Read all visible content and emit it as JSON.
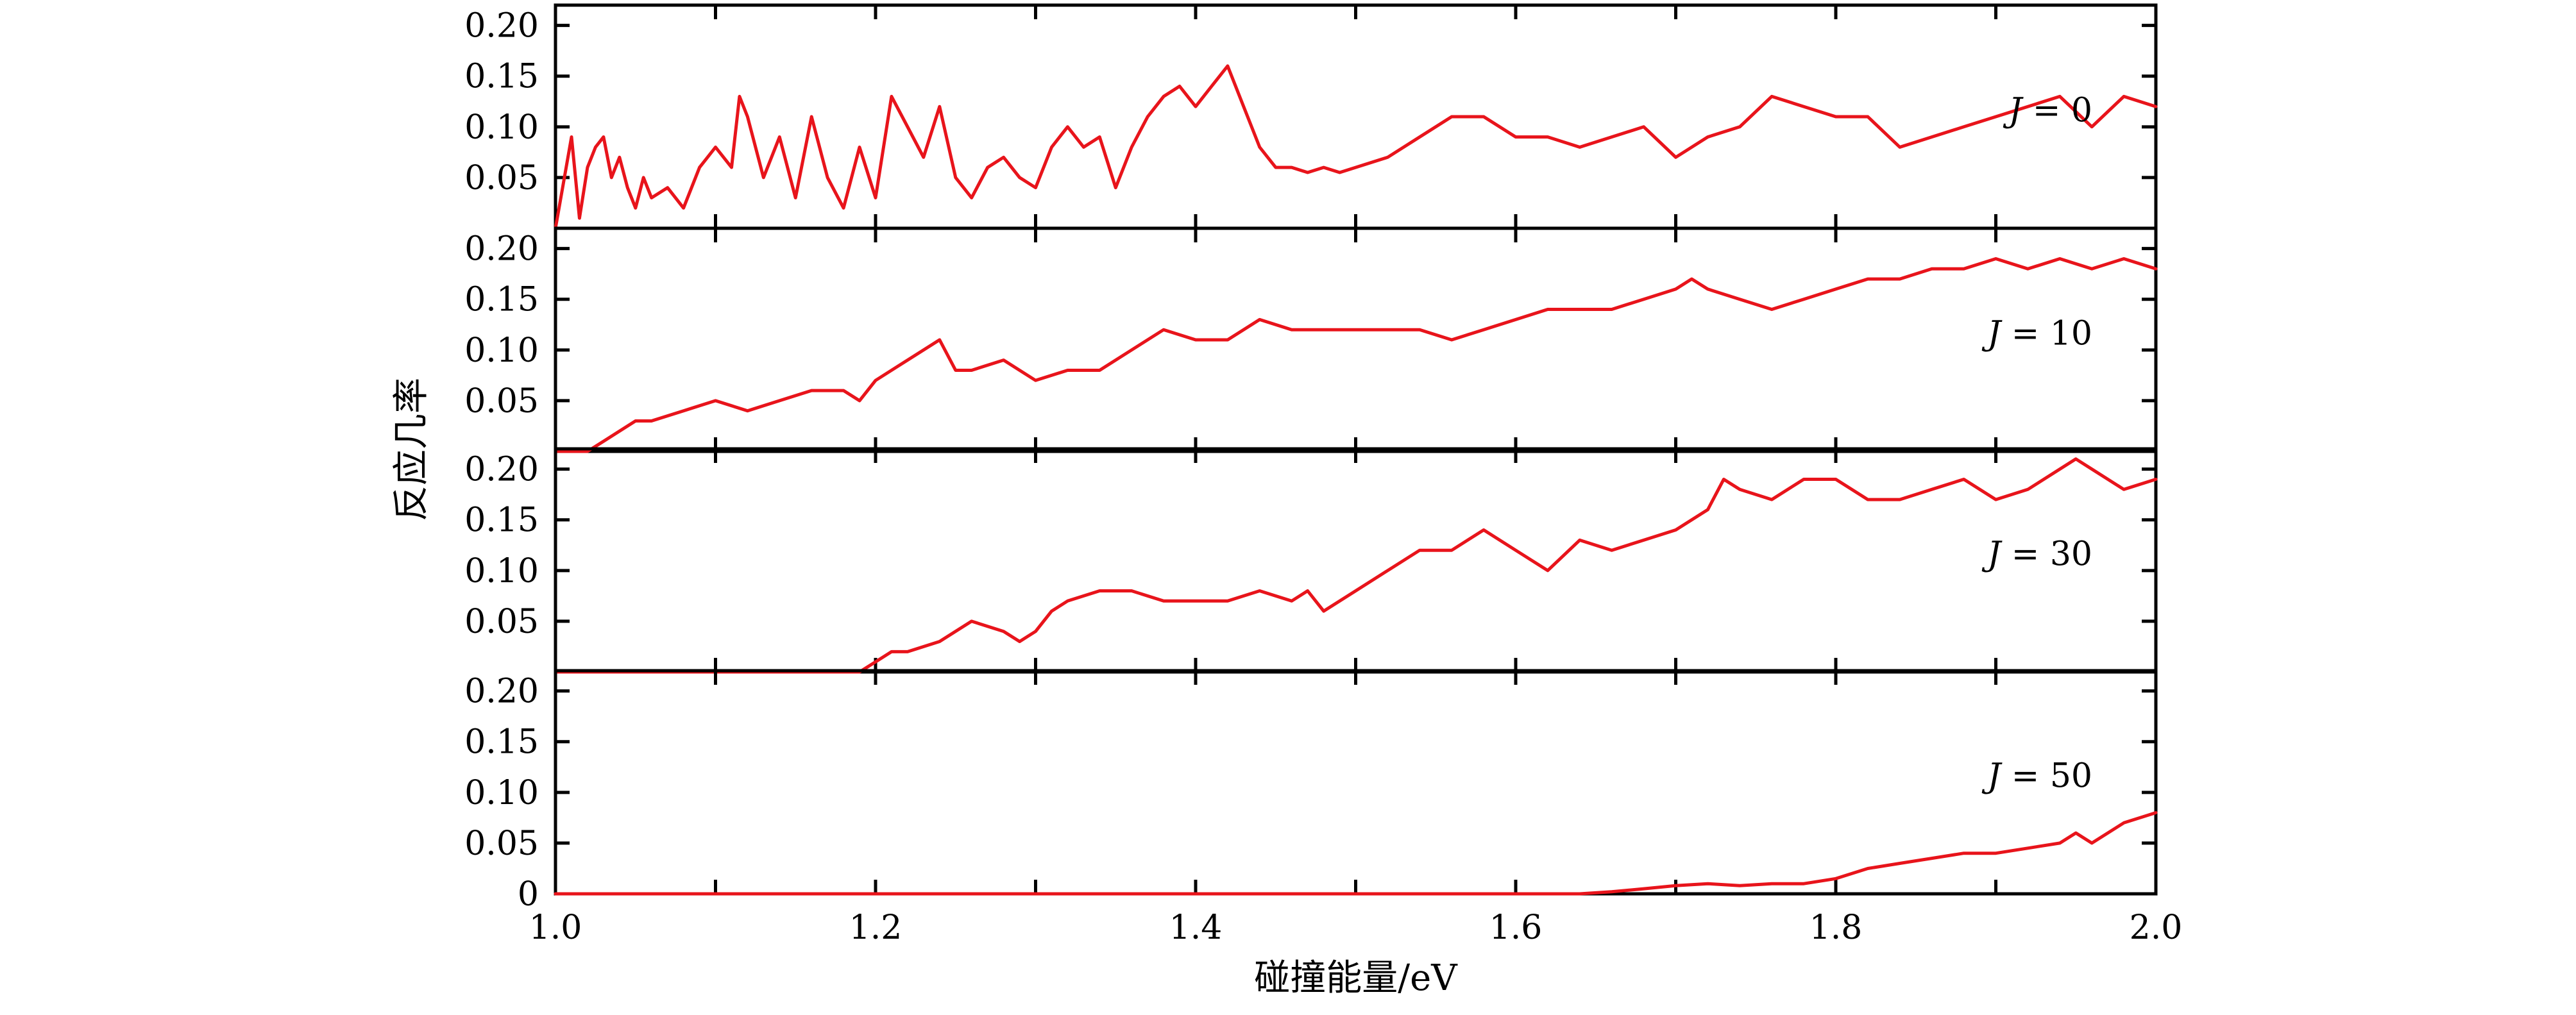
{
  "chart_data": {
    "type": "line",
    "layout": "stacked-panels",
    "xlabel": "碰撞能量/eV",
    "ylabel": "反应几率",
    "xlim": [
      1.0,
      2.0
    ],
    "ylim": [
      0.0,
      0.22
    ],
    "x_ticks": [
      1.0,
      1.1,
      1.2,
      1.3,
      1.4,
      1.5,
      1.6,
      1.7,
      1.8,
      1.9,
      2.0
    ],
    "x_tick_labels": [
      "1.0",
      "1.2",
      "1.4",
      "1.6",
      "1.8",
      "2.0"
    ],
    "y_ticks": [
      0.05,
      0.1,
      0.15,
      0.2
    ],
    "y_tick_labels": [
      "0.05",
      "0.10",
      "0.15",
      "0.20"
    ],
    "bottom_zero_label": "0",
    "line_color": "#e8141b",
    "grid": false,
    "panels": [
      {
        "label": "J = 0",
        "J": "J",
        "eq": "= 0",
        "series": {
          "x": [
            1.0,
            1.01,
            1.015,
            1.02,
            1.025,
            1.03,
            1.035,
            1.04,
            1.045,
            1.05,
            1.055,
            1.06,
            1.07,
            1.08,
            1.09,
            1.1,
            1.11,
            1.115,
            1.12,
            1.13,
            1.14,
            1.15,
            1.16,
            1.17,
            1.18,
            1.19,
            1.2,
            1.21,
            1.22,
            1.23,
            1.24,
            1.25,
            1.26,
            1.27,
            1.28,
            1.29,
            1.3,
            1.31,
            1.32,
            1.33,
            1.34,
            1.35,
            1.36,
            1.37,
            1.38,
            1.39,
            1.4,
            1.41,
            1.42,
            1.43,
            1.44,
            1.45,
            1.46,
            1.47,
            1.48,
            1.49,
            1.5,
            1.52,
            1.54,
            1.56,
            1.58,
            1.6,
            1.62,
            1.64,
            1.66,
            1.68,
            1.7,
            1.72,
            1.74,
            1.76,
            1.78,
            1.8,
            1.82,
            1.84,
            1.86,
            1.88,
            1.9,
            1.92,
            1.94,
            1.96,
            1.98,
            2.0
          ],
          "y": [
            0.0,
            0.09,
            0.01,
            0.06,
            0.08,
            0.09,
            0.05,
            0.07,
            0.04,
            0.02,
            0.05,
            0.03,
            0.04,
            0.02,
            0.06,
            0.08,
            0.06,
            0.13,
            0.11,
            0.05,
            0.09,
            0.03,
            0.11,
            0.05,
            0.02,
            0.08,
            0.03,
            0.13,
            0.1,
            0.07,
            0.12,
            0.05,
            0.03,
            0.06,
            0.07,
            0.05,
            0.04,
            0.08,
            0.1,
            0.08,
            0.09,
            0.04,
            0.08,
            0.11,
            0.13,
            0.14,
            0.12,
            0.14,
            0.16,
            0.12,
            0.08,
            0.06,
            0.06,
            0.055,
            0.06,
            0.055,
            0.06,
            0.07,
            0.09,
            0.11,
            0.11,
            0.09,
            0.09,
            0.08,
            0.09,
            0.1,
            0.07,
            0.09,
            0.1,
            0.13,
            0.12,
            0.11,
            0.11,
            0.08,
            0.09,
            0.1,
            0.11,
            0.12,
            0.13,
            0.1,
            0.13,
            0.12
          ]
        }
      },
      {
        "label": "J = 10",
        "J": "J",
        "eq": "= 10",
        "series": {
          "x": [
            1.0,
            1.02,
            1.03,
            1.04,
            1.05,
            1.06,
            1.08,
            1.1,
            1.12,
            1.14,
            1.16,
            1.18,
            1.19,
            1.2,
            1.22,
            1.24,
            1.25,
            1.26,
            1.28,
            1.3,
            1.32,
            1.34,
            1.36,
            1.38,
            1.4,
            1.42,
            1.44,
            1.46,
            1.48,
            1.5,
            1.52,
            1.54,
            1.56,
            1.58,
            1.6,
            1.62,
            1.64,
            1.66,
            1.68,
            1.7,
            1.71,
            1.72,
            1.74,
            1.76,
            1.78,
            1.8,
            1.82,
            1.84,
            1.86,
            1.88,
            1.9,
            1.92,
            1.94,
            1.96,
            1.98,
            2.0
          ],
          "y": [
            0.0,
            0.0,
            0.01,
            0.02,
            0.03,
            0.03,
            0.04,
            0.05,
            0.04,
            0.05,
            0.06,
            0.06,
            0.05,
            0.07,
            0.09,
            0.11,
            0.08,
            0.08,
            0.09,
            0.07,
            0.08,
            0.08,
            0.1,
            0.12,
            0.11,
            0.11,
            0.13,
            0.12,
            0.12,
            0.12,
            0.12,
            0.12,
            0.11,
            0.12,
            0.13,
            0.14,
            0.14,
            0.14,
            0.15,
            0.16,
            0.17,
            0.16,
            0.15,
            0.14,
            0.15,
            0.16,
            0.17,
            0.17,
            0.18,
            0.18,
            0.19,
            0.18,
            0.19,
            0.18,
            0.19,
            0.18
          ]
        }
      },
      {
        "label": "J = 30",
        "J": "J",
        "eq": "= 30",
        "series": {
          "x": [
            1.0,
            1.18,
            1.19,
            1.2,
            1.21,
            1.22,
            1.24,
            1.26,
            1.28,
            1.29,
            1.3,
            1.31,
            1.32,
            1.34,
            1.36,
            1.38,
            1.4,
            1.42,
            1.44,
            1.46,
            1.47,
            1.48,
            1.5,
            1.52,
            1.54,
            1.56,
            1.58,
            1.6,
            1.62,
            1.64,
            1.66,
            1.68,
            1.7,
            1.72,
            1.73,
            1.74,
            1.76,
            1.78,
            1.8,
            1.82,
            1.84,
            1.86,
            1.88,
            1.9,
            1.92,
            1.94,
            1.95,
            1.96,
            1.98,
            2.0
          ],
          "y": [
            0.0,
            0.0,
            0.0,
            0.01,
            0.02,
            0.02,
            0.03,
            0.05,
            0.04,
            0.03,
            0.04,
            0.06,
            0.07,
            0.08,
            0.08,
            0.07,
            0.07,
            0.07,
            0.08,
            0.07,
            0.08,
            0.06,
            0.08,
            0.1,
            0.12,
            0.12,
            0.14,
            0.12,
            0.1,
            0.13,
            0.12,
            0.13,
            0.14,
            0.16,
            0.19,
            0.18,
            0.17,
            0.19,
            0.19,
            0.17,
            0.17,
            0.18,
            0.19,
            0.17,
            0.18,
            0.2,
            0.21,
            0.2,
            0.18,
            0.19
          ]
        }
      },
      {
        "label": "J = 50",
        "J": "J",
        "eq": "= 50",
        "series": {
          "x": [
            1.0,
            1.64,
            1.66,
            1.68,
            1.7,
            1.72,
            1.74,
            1.76,
            1.78,
            1.8,
            1.82,
            1.84,
            1.86,
            1.88,
            1.9,
            1.92,
            1.94,
            1.95,
            1.96,
            1.98,
            2.0
          ],
          "y": [
            0.0,
            0.0,
            0.002,
            0.005,
            0.008,
            0.01,
            0.008,
            0.01,
            0.01,
            0.015,
            0.025,
            0.03,
            0.035,
            0.04,
            0.04,
            0.045,
            0.05,
            0.06,
            0.05,
            0.07,
            0.08
          ]
        }
      }
    ]
  }
}
